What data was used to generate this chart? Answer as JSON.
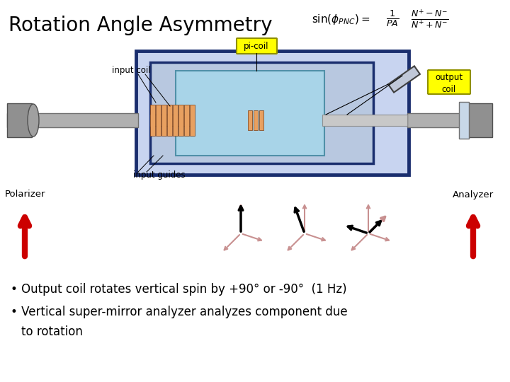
{
  "title": "Rotation Angle Asymmetry",
  "bg_color": "#ffffff",
  "title_fontsize": 20,
  "bullet1": "Output coil rotates vertical spin by +90° or -90°  (1 Hz)",
  "bullet2": "Vertical super-mirror analyzer analyzes component due",
  "bullet2b": "   to rotation",
  "label_picoil": "pi-coil",
  "label_inputcoil": "input coil",
  "label_outputcoil": "output\ncoil",
  "label_inputguides": "input guides",
  "label_polarizer": "Polarizer",
  "label_analyzer": "Analyzer",
  "dark_blue": "#1a2e6e",
  "light_blue": "#a8d4e8",
  "outer_blue": "#c8d4f0",
  "inner_blue": "#b8c8e0",
  "orange_coil": "#e8a060",
  "yellow_label": "#ffff00",
  "red_arrow": "#cc0000",
  "salmon": "#c89090",
  "black": "#000000",
  "gray_tube": "#b0b0b0",
  "gray_dark": "#808080"
}
